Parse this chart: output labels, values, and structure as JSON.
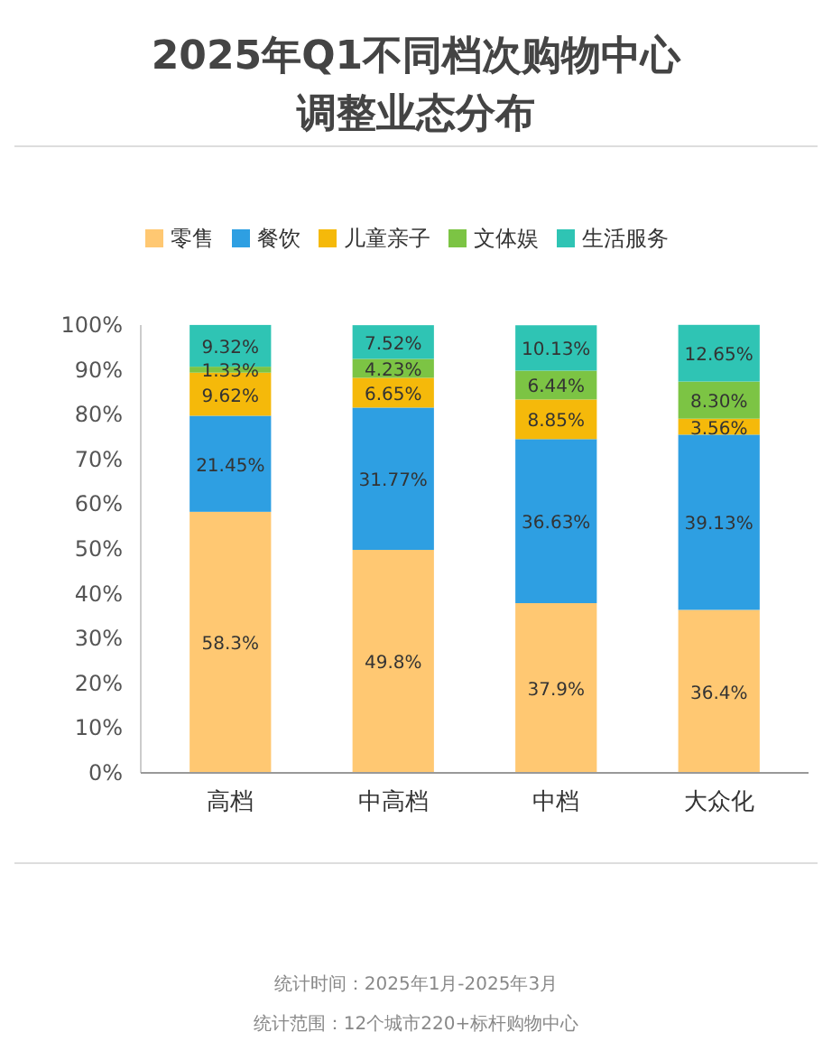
{
  "chart_data": {
    "type": "bar",
    "title": "2025年Q1不同档次购物中心",
    "subtitle": "调整业态分布",
    "categories": [
      "高档",
      "中高档",
      "中档",
      "大众化"
    ],
    "stacked": true,
    "legend": "top",
    "grid": false,
    "ylim": [
      0,
      100
    ],
    "yticks": [
      {
        "value": 0,
        "label": "0%"
      },
      {
        "value": 10,
        "label": "10%"
      },
      {
        "value": 20,
        "label": "20%"
      },
      {
        "value": 30,
        "label": "30%"
      },
      {
        "value": 40,
        "label": "40%"
      },
      {
        "value": 50,
        "label": "50%"
      },
      {
        "value": 60,
        "label": "60%"
      },
      {
        "value": 70,
        "label": "70%"
      },
      {
        "value": 80,
        "label": "80%"
      },
      {
        "value": 90,
        "label": "90%"
      },
      {
        "value": 100,
        "label": "100%"
      }
    ],
    "series": [
      {
        "name": "零售",
        "color": "#ffc872",
        "values": [
          58.3,
          49.8,
          37.9,
          36.4
        ],
        "value_labels": [
          "58.3%",
          "49.8%",
          "37.9%",
          "36.4%"
        ]
      },
      {
        "name": "餐饮",
        "color": "#2e9fe2",
        "values": [
          21.45,
          31.77,
          36.63,
          39.13
        ],
        "value_labels": [
          "21.45%",
          "31.77%",
          "36.63%",
          "39.13%"
        ]
      },
      {
        "name": "儿童亲子",
        "color": "#f5b90a",
        "values": [
          9.62,
          6.65,
          8.85,
          3.56
        ],
        "value_labels": [
          "9.62%",
          "6.65%",
          "8.85%",
          "3.56%"
        ]
      },
      {
        "name": "文体娱",
        "color": "#7cc444",
        "values": [
          1.33,
          4.23,
          6.44,
          8.3
        ],
        "value_labels": [
          "1.33%",
          "4.23%",
          "6.44%",
          "8.30%"
        ]
      },
      {
        "name": "生活服务",
        "color": "#2fc4b4",
        "values": [
          9.32,
          7.52,
          10.13,
          12.65
        ],
        "value_labels": [
          "9.32%",
          "7.52%",
          "10.13%",
          "12.65%"
        ]
      }
    ],
    "annotations": [
      "统计时间：2025年1月-2025年3月",
      "统计范围：12个城市220+标杆购物中心"
    ]
  }
}
